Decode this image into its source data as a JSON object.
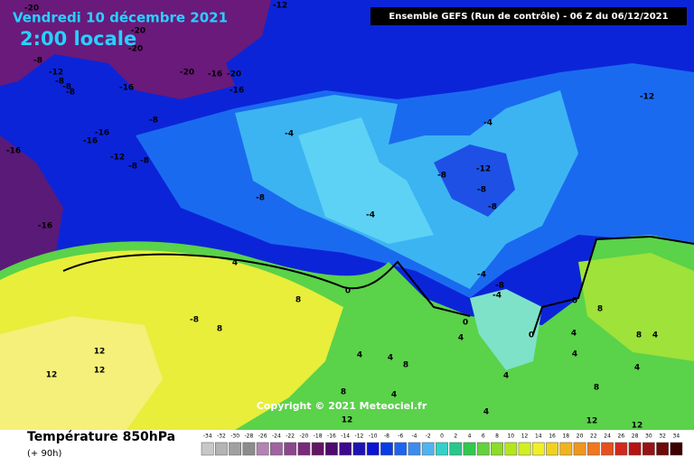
{
  "header": {
    "date": "Vendredi 10 décembre 2021",
    "time": "2:00 locale",
    "run": "Ensemble GEFS  (Run de contrôle)  -  06 Z du 06/12/2021"
  },
  "copyright": "Copyright © 2021 Meteociel.fr",
  "footer": {
    "title": "Température 850hPa",
    "lead": "(+ 90h)"
  },
  "contour_labels": [
    -20,
    -12,
    -20,
    -20,
    -8,
    -12,
    -8,
    -8,
    -8,
    -16,
    -20,
    -16,
    -20,
    -16,
    -8,
    -16,
    -16,
    -12,
    -8,
    -8,
    -16,
    -16,
    -8,
    -4,
    -4,
    -12,
    -8,
    -12,
    -8,
    -8,
    -4,
    4,
    0,
    8,
    -8,
    8,
    12,
    12,
    12,
    -4,
    -8,
    -4,
    0,
    4,
    0,
    0,
    8,
    4,
    8,
    4,
    4,
    4,
    8,
    4,
    4,
    4,
    8,
    12,
    8,
    12,
    12,
    4,
    4
  ],
  "colorbar": {
    "ticks": [
      -34,
      -32,
      -30,
      -28,
      -26,
      -24,
      -22,
      -20,
      -18,
      -16,
      -14,
      -12,
      -10,
      -8,
      -6,
      -4,
      -2,
      0,
      2,
      4,
      6,
      8,
      10,
      12,
      14,
      16,
      18,
      20,
      22,
      24,
      26,
      28,
      30,
      32,
      34
    ],
    "colors": [
      "#c8c8c8",
      "#b4b4b4",
      "#a0a0a0",
      "#8c8c8c",
      "#b482b4",
      "#a064a0",
      "#8c468c",
      "#7a2a7a",
      "#641464",
      "#500a6e",
      "#3c0a8c",
      "#1e14b4",
      "#0a14d2",
      "#0a3ce6",
      "#1e64f0",
      "#3c8cf0",
      "#50b4f0",
      "#32d2c8",
      "#28c88c",
      "#32c850",
      "#64d23c",
      "#8cdc28",
      "#b4e61e",
      "#d2f01e",
      "#f0f028",
      "#f0d21e",
      "#f0b41e",
      "#f0961e",
      "#f0781e",
      "#e6501e",
      "#d2281e",
      "#b41414",
      "#961414",
      "#6e0a0a",
      "#3c0000"
    ]
  }
}
